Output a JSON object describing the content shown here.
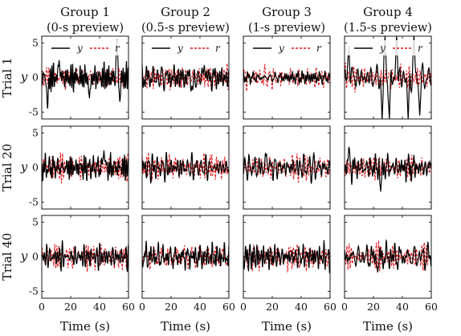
{
  "figure": {
    "columns": [
      {
        "title": "Group 1",
        "subtitle": "(0-s preview)"
      },
      {
        "title": "Group 2",
        "subtitle": "(0.5-s preview)"
      },
      {
        "title": "Group 3",
        "subtitle": "(1-s preview)"
      },
      {
        "title": "Group 4",
        "subtitle": "(1.5-s preview)"
      }
    ],
    "rows": [
      {
        "label": "Trial 1"
      },
      {
        "label": "Trial 20"
      },
      {
        "label": "Trial 40"
      }
    ],
    "xlabel": "Time (s)",
    "ylabel": "y",
    "legend": {
      "y": "y",
      "r": "r"
    },
    "colors": {
      "y": "#000000",
      "r": "#e0161b"
    }
  },
  "chart_data": {
    "type": "line",
    "layout": "grid 3 rows x 4 columns",
    "series": [
      {
        "name": "y",
        "style": "solid",
        "color": "#000000"
      },
      {
        "name": "r",
        "style": "dashed",
        "color": "#e0161b"
      }
    ],
    "xlim": [
      0,
      60
    ],
    "ylim": [
      -6,
      6
    ],
    "xticks": [
      0,
      20,
      40,
      60
    ],
    "yticks": [
      -5,
      0,
      5
    ],
    "legend_position": "top (first row panels)",
    "panels": [
      {
        "row": "Trial 1",
        "column": "Group 1",
        "r_amp": 1.1,
        "y_amp": 1.4,
        "y_spikes": [
          [
            4,
            -4.5
          ],
          [
            12,
            2.5
          ],
          [
            33,
            -3.0
          ],
          [
            52,
            5.5
          ],
          [
            54,
            -3.5
          ]
        ]
      },
      {
        "row": "Trial 1",
        "column": "Group 2",
        "r_amp": 1.1,
        "y_amp": 1.4,
        "y_spikes": [
          [
            35,
            -1.8
          ],
          [
            43,
            1.8
          ]
        ]
      },
      {
        "row": "Trial 1",
        "column": "Group 3",
        "r_amp": 1.1,
        "y_amp": 0.8,
        "y_spikes": []
      },
      {
        "row": "Trial 1",
        "column": "Group 4",
        "r_amp": 1.1,
        "y_amp": 1.5,
        "y_spikes": [
          [
            3,
            4.5
          ],
          [
            26,
            -6.0
          ],
          [
            28,
            6.0
          ],
          [
            31,
            -6.0
          ],
          [
            36,
            6.0
          ],
          [
            44,
            -6.0
          ],
          [
            48,
            6.0
          ],
          [
            52,
            -5.5
          ]
        ]
      },
      {
        "row": "Trial 20",
        "column": "Group 1",
        "r_amp": 1.2,
        "y_amp": 1.3,
        "y_spikes": [
          [
            43,
            2.5
          ]
        ]
      },
      {
        "row": "Trial 20",
        "column": "Group 2",
        "r_amp": 1.2,
        "y_amp": 1.3,
        "y_spikes": []
      },
      {
        "row": "Trial 20",
        "column": "Group 3",
        "r_amp": 1.2,
        "y_amp": 1.3,
        "y_spikes": [
          [
            16,
            2.0
          ]
        ]
      },
      {
        "row": "Trial 20",
        "column": "Group 4",
        "r_amp": 1.2,
        "y_amp": 1.3,
        "y_spikes": [
          [
            3,
            3.0
          ],
          [
            25,
            -3.5
          ]
        ]
      },
      {
        "row": "Trial 40",
        "column": "Group 1",
        "r_amp": 1.3,
        "y_amp": 1.2,
        "y_spikes": []
      },
      {
        "row": "Trial 40",
        "column": "Group 2",
        "r_amp": 1.3,
        "y_amp": 1.3,
        "y_spikes": []
      },
      {
        "row": "Trial 40",
        "column": "Group 3",
        "r_amp": 1.3,
        "y_amp": 1.3,
        "y_spikes": []
      },
      {
        "row": "Trial 40",
        "column": "Group 4",
        "r_amp": 1.3,
        "y_amp": 1.3,
        "y_spikes": [
          [
            23,
            -2.2
          ]
        ]
      }
    ]
  }
}
